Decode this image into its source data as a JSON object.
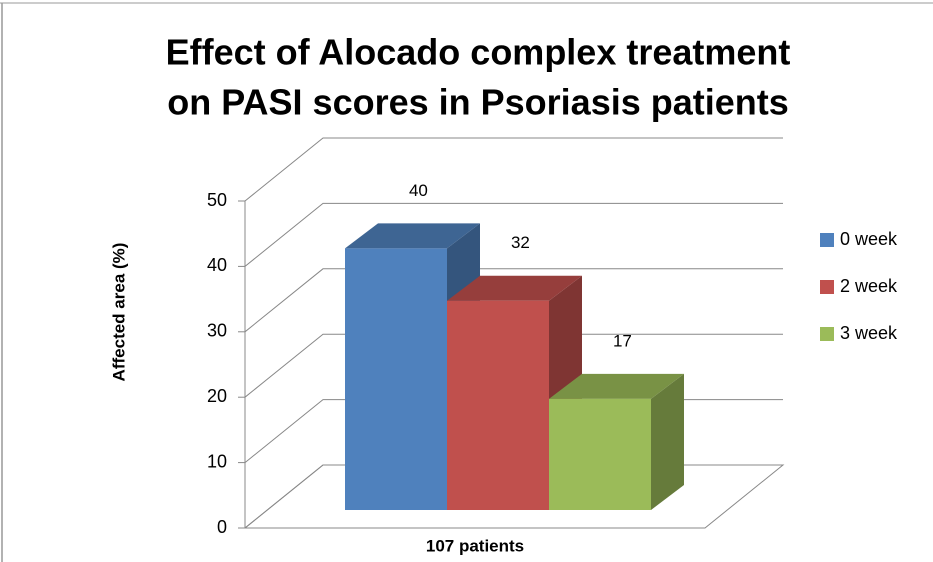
{
  "chart_data": {
    "type": "bar3d",
    "title": [
      "Effect of Alocado complex treatment",
      "on PASI scores in Psoriasis patients"
    ],
    "ylabel": "Affected area (%)",
    "categories": [
      "107 patients"
    ],
    "series": [
      {
        "name": "0 week",
        "color": "#4f81bd",
        "values": [
          40
        ]
      },
      {
        "name": "2 week",
        "color": "#c0504d",
        "values": [
          32
        ]
      },
      {
        "name": "3 week",
        "color": "#9bbb59",
        "values": [
          17
        ]
      }
    ],
    "ylim": [
      0,
      50
    ],
    "yticks": [
      0,
      10,
      20,
      30,
      40,
      50
    ],
    "grid": true,
    "legend": "right"
  }
}
